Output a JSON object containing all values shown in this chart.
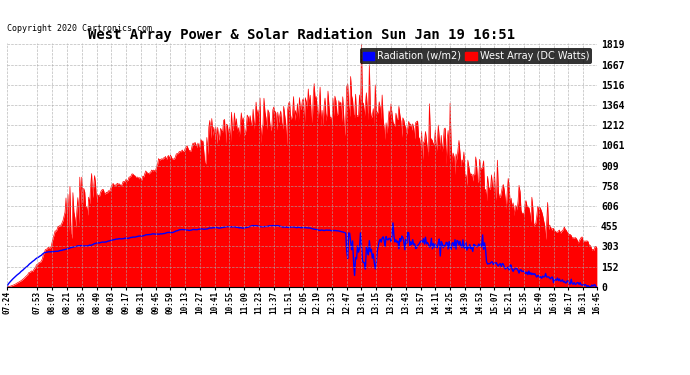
{
  "title": "West Array Power & Solar Radiation Sun Jan 19 16:51",
  "copyright": "Copyright 2020 Cartronics.com",
  "legend_radiation": "Radiation (w/m2)",
  "legend_west": "West Array (DC Watts)",
  "yticks": [
    0.0,
    151.6,
    303.1,
    454.7,
    606.2,
    757.8,
    909.3,
    1060.9,
    1212.5,
    1364.0,
    1515.6,
    1667.1,
    1818.7
  ],
  "ymax": 1818.7,
  "ymin": 0.0,
  "bg_color": "#ffffff",
  "plot_bg_color": "#ffffff",
  "grid_color": "#aaaaaa",
  "red_fill_color": "#ff0000",
  "blue_line_color": "#0000ff",
  "title_color": "#000000",
  "xtick_labels": [
    "07:24",
    "07:53",
    "08:07",
    "08:21",
    "08:35",
    "08:49",
    "09:03",
    "09:17",
    "09:31",
    "09:45",
    "09:59",
    "10:13",
    "10:27",
    "10:41",
    "10:55",
    "11:09",
    "11:23",
    "11:37",
    "11:51",
    "12:05",
    "12:19",
    "12:33",
    "12:47",
    "13:01",
    "13:15",
    "13:29",
    "13:43",
    "13:57",
    "14:11",
    "14:25",
    "14:39",
    "14:53",
    "15:07",
    "15:21",
    "15:35",
    "15:49",
    "16:03",
    "16:17",
    "16:31",
    "16:45"
  ]
}
